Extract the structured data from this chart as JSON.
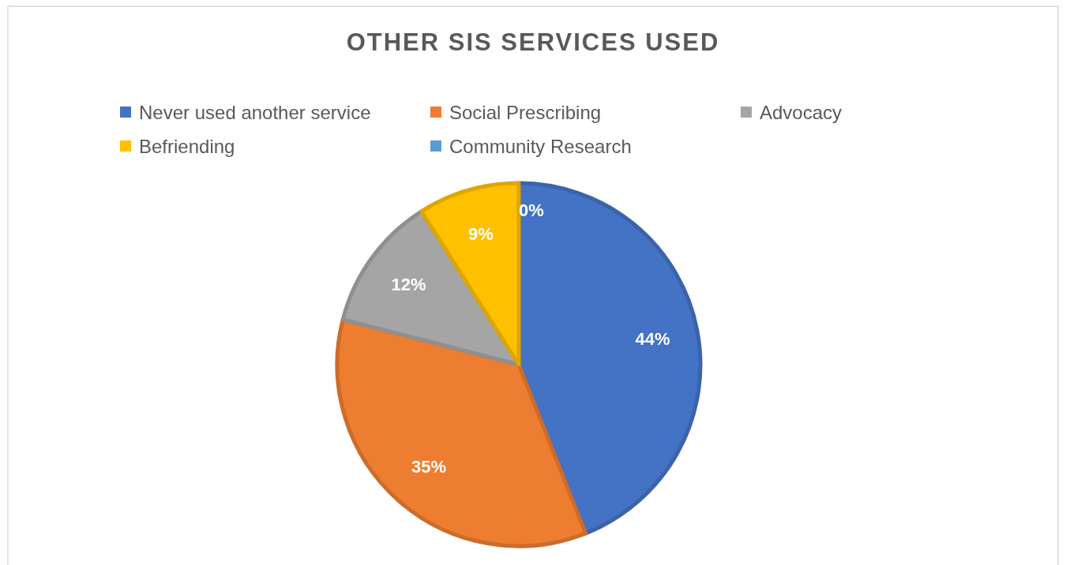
{
  "chart_data": {
    "type": "pie",
    "title": "OTHER SIS SERVICES USED",
    "categories": [
      "Never used another service",
      "Social Prescribing",
      "Advocacy",
      "Befriending",
      "Community Research"
    ],
    "values": [
      44,
      35,
      12,
      9,
      0
    ],
    "colors": [
      "#4472c4",
      "#ed7d31",
      "#a5a5a5",
      "#ffc000",
      "#5b9bd5"
    ],
    "value_labels": [
      "44%",
      "35%",
      "12%",
      "9%",
      "0%"
    ],
    "legend": "top"
  }
}
